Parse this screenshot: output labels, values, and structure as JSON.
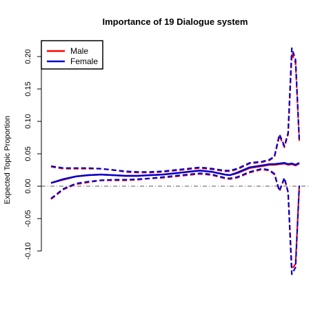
{
  "chart_data": {
    "type": "line",
    "title": "Importance of 19 Dialogue system",
    "xlabel": "",
    "ylabel": "Expected Topic Proportion",
    "xlim": [
      0,
      1
    ],
    "ylim": [
      -0.1,
      0.22
    ],
    "yticks": [
      -0.1,
      -0.05,
      0.0,
      0.05,
      0.1,
      0.15,
      0.2
    ],
    "ytick_labels": [
      "-0.10",
      "-0.05",
      "0.00",
      "0.05",
      "0.10",
      "0.15",
      "0.20"
    ],
    "reference_line": 0,
    "legend": {
      "position": "top-left",
      "entries": [
        "Male",
        "Female"
      ]
    },
    "x": [
      0.0,
      0.05,
      0.1,
      0.15,
      0.2,
      0.25,
      0.3,
      0.35,
      0.4,
      0.45,
      0.5,
      0.55,
      0.6,
      0.65,
      0.7,
      0.72,
      0.75,
      0.8,
      0.85,
      0.88,
      0.9,
      0.92,
      0.94,
      0.955,
      0.97,
      0.985,
      1.0
    ],
    "series": [
      {
        "name": "Male",
        "color": "#ff0000",
        "mean": [
          0.005,
          0.01,
          0.015,
          0.017,
          0.018,
          0.017,
          0.016,
          0.016,
          0.017,
          0.018,
          0.02,
          0.022,
          0.024,
          0.022,
          0.018,
          0.017,
          0.02,
          0.028,
          0.031,
          0.033,
          0.033,
          0.034,
          0.035,
          0.033,
          0.034,
          0.032,
          0.035
        ],
        "upper": [
          0.03,
          0.027,
          0.027,
          0.027,
          0.027,
          0.025,
          0.022,
          0.021,
          0.021,
          0.022,
          0.024,
          0.026,
          0.028,
          0.026,
          0.023,
          0.023,
          0.026,
          0.035,
          0.037,
          0.04,
          0.045,
          0.078,
          0.06,
          0.08,
          0.205,
          0.19,
          0.07
        ],
        "lower": [
          -0.02,
          -0.005,
          0.003,
          0.006,
          0.009,
          0.009,
          0.009,
          0.01,
          0.012,
          0.013,
          0.015,
          0.017,
          0.019,
          0.017,
          0.012,
          0.011,
          0.013,
          0.021,
          0.026,
          0.024,
          0.018,
          -0.008,
          0.012,
          -0.01,
          -0.128,
          -0.12,
          0.0
        ]
      },
      {
        "name": "Female",
        "color": "#0000cc",
        "mean": [
          0.005,
          0.011,
          0.015,
          0.017,
          0.018,
          0.017,
          0.016,
          0.016,
          0.017,
          0.018,
          0.02,
          0.022,
          0.024,
          0.022,
          0.018,
          0.017,
          0.021,
          0.029,
          0.032,
          0.034,
          0.034,
          0.035,
          0.036,
          0.034,
          0.035,
          0.033,
          0.036
        ],
        "upper": [
          0.031,
          0.028,
          0.028,
          0.028,
          0.027,
          0.025,
          0.023,
          0.022,
          0.022,
          0.023,
          0.025,
          0.027,
          0.029,
          0.027,
          0.024,
          0.024,
          0.027,
          0.036,
          0.038,
          0.041,
          0.046,
          0.08,
          0.062,
          0.082,
          0.213,
          0.195,
          0.072
        ],
        "lower": [
          -0.019,
          -0.004,
          0.004,
          0.007,
          0.009,
          0.01,
          0.01,
          0.011,
          0.012,
          0.014,
          0.016,
          0.018,
          0.02,
          0.018,
          0.013,
          0.012,
          0.014,
          0.022,
          0.027,
          0.025,
          0.019,
          -0.007,
          0.013,
          -0.009,
          -0.136,
          -0.125,
          0.001
        ]
      }
    ]
  }
}
